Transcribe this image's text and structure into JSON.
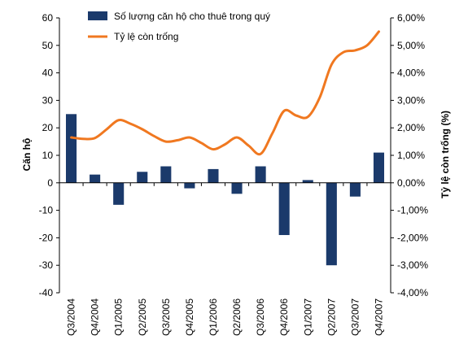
{
  "chart_data": {
    "type": "bar+line",
    "categories": [
      "Q3/2004",
      "Q4/2004",
      "Q1/2005",
      "Q2/2005",
      "Q3/2005",
      "Q4/2005",
      "Q1/2006",
      "Q2/2006",
      "Q3/2006",
      "Q4/2006",
      "Q1/2007",
      "Q2/2007",
      "Q3/2007",
      "Q4/2007"
    ],
    "series": [
      {
        "name": "Số lượng căn hộ cho thuê trong quý",
        "type": "bar",
        "axis": "left",
        "color": "#1b3a6b",
        "values": [
          25,
          3,
          -8,
          4,
          6,
          -2,
          5,
          -4,
          6,
          -19,
          1,
          -30,
          -5,
          11
        ]
      },
      {
        "name": "Tỷ lệ còn trống",
        "type": "line",
        "axis": "right",
        "color": "#f07820",
        "points": [
          {
            "x": 0.0,
            "y": 1.65
          },
          {
            "x": 0.5,
            "y": 1.6
          },
          {
            "x": 1.0,
            "y": 1.63
          },
          {
            "x": 1.5,
            "y": 1.95
          },
          {
            "x": 2.0,
            "y": 2.28
          },
          {
            "x": 2.5,
            "y": 2.15
          },
          {
            "x": 3.0,
            "y": 1.95
          },
          {
            "x": 3.5,
            "y": 1.7
          },
          {
            "x": 4.0,
            "y": 1.5
          },
          {
            "x": 4.5,
            "y": 1.55
          },
          {
            "x": 5.0,
            "y": 1.65
          },
          {
            "x": 5.5,
            "y": 1.45
          },
          {
            "x": 6.0,
            "y": 1.22
          },
          {
            "x": 6.5,
            "y": 1.4
          },
          {
            "x": 7.0,
            "y": 1.65
          },
          {
            "x": 7.5,
            "y": 1.35
          },
          {
            "x": 8.0,
            "y": 1.05
          },
          {
            "x": 8.5,
            "y": 1.8
          },
          {
            "x": 9.0,
            "y": 2.62
          },
          {
            "x": 9.5,
            "y": 2.45
          },
          {
            "x": 10.0,
            "y": 2.4
          },
          {
            "x": 10.5,
            "y": 3.1
          },
          {
            "x": 11.0,
            "y": 4.3
          },
          {
            "x": 11.5,
            "y": 4.75
          },
          {
            "x": 12.0,
            "y": 4.82
          },
          {
            "x": 12.5,
            "y": 5.0
          },
          {
            "x": 13.0,
            "y": 5.5
          }
        ]
      }
    ],
    "left_axis": {
      "label": "Căn hộ",
      "min": -40,
      "max": 60,
      "step": 10,
      "ticks": [
        "60",
        "50",
        "40",
        "30",
        "20",
        "10",
        "0",
        "-10",
        "-20",
        "-30",
        "-40"
      ]
    },
    "right_axis": {
      "label": "Tỷ lệ còn trống (%)",
      "min": -4,
      "max": 6,
      "step": 1,
      "ticks": [
        "6,00%",
        "5,00%",
        "4,00%",
        "3,00%",
        "2,00%",
        "1,00%",
        "0,00%",
        "-1,00%",
        "-2,00%",
        "-3,00%",
        "-4,00%"
      ]
    },
    "legend_placement": "top-left",
    "grid": false
  }
}
